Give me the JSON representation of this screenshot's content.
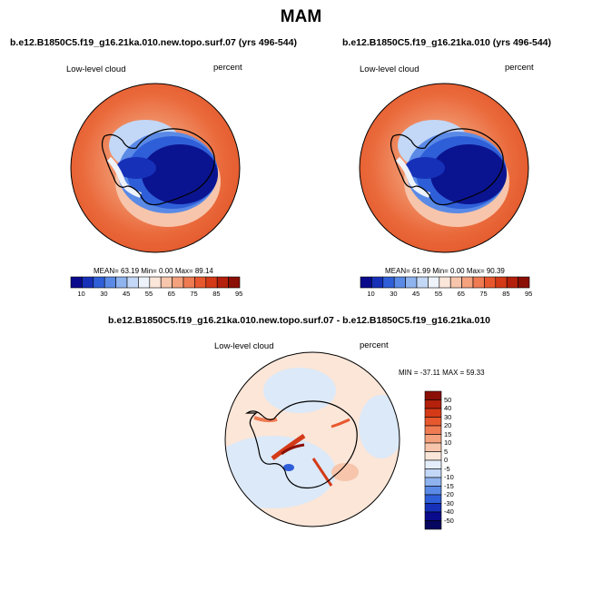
{
  "figure_title": "MAM",
  "panels": [
    {
      "title": "b.e12.B1850C5.f19_g16.21ka.010.new.topo.surf.07 (yrs 496-544)",
      "variable": "Low-level cloud",
      "units": "percent",
      "stats": "MEAN=  63.19  Min=   0.00  Max=  89.14"
    },
    {
      "title": "b.e12.B1850C5.f19_g16.21ka.010 (yrs 496-544)",
      "variable": "Low-level cloud",
      "units": "percent",
      "stats": "MEAN=  61.99  Min=   0.00  Max=  90.39"
    },
    {
      "title": "b.e12.B1850C5.f19_g16.21ka.010.new.topo.surf.07 - b.e12.B1850C5.f19_g16.21ka.010",
      "variable": "Low-level cloud",
      "units": "percent",
      "stats": "MIN = -37.11  MAX =  59.33"
    }
  ],
  "colorbar_abs": {
    "labels": [
      "10",
      "30",
      "45",
      "55",
      "65",
      "75",
      "85",
      "95"
    ],
    "colors": [
      "#0a0a8c",
      "#1630b8",
      "#2f5fd8",
      "#5a8ae6",
      "#8fb3ef",
      "#c3d7f6",
      "#edf2fb",
      "#fbe6da",
      "#f7c5ab",
      "#f4a17d",
      "#ef7b53",
      "#e8582f",
      "#d43a17",
      "#b3200b",
      "#8a0f05"
    ]
  },
  "colorbar_diff": {
    "labels": [
      "50",
      "40",
      "30",
      "20",
      "15",
      "10",
      "5",
      "0",
      "-5",
      "-10",
      "-15",
      "-20",
      "-30",
      "-40",
      "-50"
    ],
    "colors": [
      "#8a0f05",
      "#b3200b",
      "#d43a17",
      "#e8582f",
      "#ef7b53",
      "#f4a17d",
      "#f7c5ab",
      "#fbe6da",
      "#e4eefb",
      "#c3d7f6",
      "#8fb3ef",
      "#5a8ae6",
      "#2f5fd8",
      "#1630b8",
      "#0a0a8c",
      "#060660"
    ]
  },
  "colors": {
    "ocean_high": "#ea6a3c",
    "ocean_mid": "#f08f66",
    "antarctic_low": "#0b1490",
    "diff_background": "#fbe6d8",
    "diff_neutral": "#dce9f8"
  }
}
